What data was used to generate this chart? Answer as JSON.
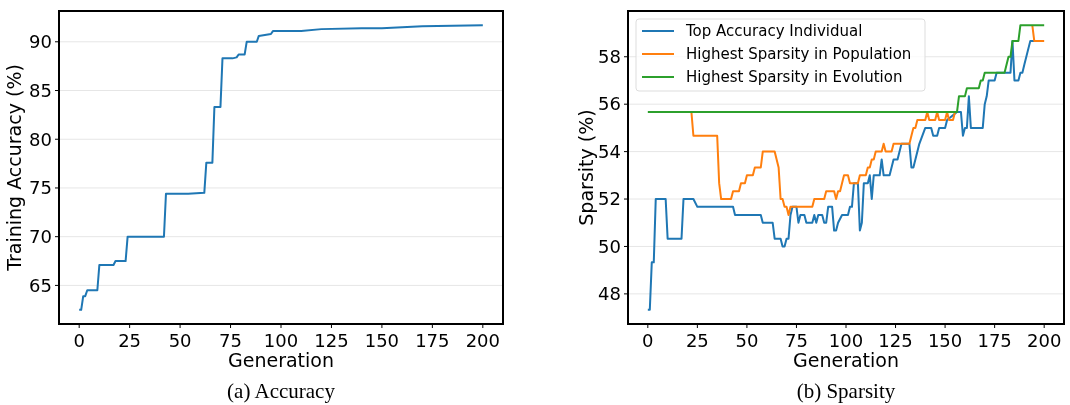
{
  "chart_data": [
    {
      "type": "line",
      "title": "(a) Accuracy",
      "xlabel": "Generation",
      "ylabel": "Training Accuracy (%)",
      "xlim": [
        -10,
        210
      ],
      "ylim": [
        61.04,
        93.16
      ],
      "xticks": [
        0,
        25,
        50,
        75,
        100,
        125,
        150,
        175,
        200
      ],
      "yticks": [
        65,
        70,
        75,
        80,
        85,
        90
      ],
      "grid": "y",
      "legend": false,
      "series": [
        {
          "color": "#1f77b4",
          "x": [
            0,
            1,
            2,
            3,
            4,
            9,
            10,
            17,
            18,
            23,
            24,
            42,
            43,
            54,
            62,
            63,
            66,
            67,
            70,
            71,
            76,
            78,
            79,
            82,
            83,
            88,
            89,
            92,
            95,
            96,
            110,
            120,
            140,
            150,
            160,
            170,
            200
          ],
          "values": [
            62.5,
            62.5,
            63.9,
            63.9,
            64.5,
            64.5,
            67.1,
            67.1,
            67.5,
            67.5,
            70,
            70,
            74.4,
            74.4,
            74.5,
            77.6,
            77.6,
            83.3,
            83.3,
            88.3,
            88.3,
            88.4,
            88.7,
            88.7,
            90,
            90,
            90.6,
            90.7,
            90.8,
            91.1,
            91.1,
            91.3,
            91.4,
            91.4,
            91.5,
            91.6,
            91.7
          ]
        }
      ]
    },
    {
      "type": "line",
      "title": "(b) Sparsity",
      "xlabel": "Generation",
      "ylabel": "Sparsity (%)",
      "xlim": [
        -10,
        210
      ],
      "ylim": [
        46.73,
        59.93
      ],
      "xticks": [
        0,
        25,
        50,
        75,
        100,
        125,
        150,
        175,
        200
      ],
      "yticks": [
        48,
        50,
        52,
        54,
        56,
        58
      ],
      "grid": "y",
      "legend": "top left",
      "series": [
        {
          "name": "Top Accuracy Individual",
          "color": "#1f77b4",
          "x": [
            0,
            1,
            2,
            3,
            4,
            9,
            10,
            17,
            18,
            23,
            25,
            43,
            44,
            57,
            58,
            63,
            64,
            67,
            68,
            69,
            70,
            71,
            72,
            73,
            75,
            76,
            77,
            79,
            80,
            83,
            84,
            85,
            86,
            88,
            89,
            90,
            91,
            93,
            94,
            95,
            96,
            98,
            101,
            102,
            103,
            104,
            106,
            107,
            108,
            109,
            111,
            112,
            113,
            114,
            117,
            118,
            119,
            122,
            124,
            126,
            128,
            132,
            133,
            134,
            137,
            140,
            143,
            144,
            146,
            147,
            150,
            151,
            156,
            158,
            159,
            160,
            161,
            162,
            163,
            169,
            170,
            171,
            172,
            175,
            176,
            183,
            184,
            185,
            187,
            188,
            189,
            190,
            193,
            195
          ],
          "values": [
            47.33,
            47.33,
            49.33,
            49.33,
            52,
            52,
            50.33,
            50.33,
            52,
            52,
            51.67,
            51.67,
            51.33,
            51.33,
            51,
            51,
            50.33,
            50.33,
            50,
            50,
            50.33,
            50.33,
            51.33,
            51.67,
            51.67,
            51,
            51.33,
            51.33,
            51,
            51,
            51.33,
            51,
            51.33,
            51.33,
            51,
            51,
            51.67,
            51.67,
            50.67,
            50.67,
            51,
            51.33,
            51.33,
            51.67,
            51.67,
            52.67,
            52.67,
            50.67,
            51,
            52.67,
            52.67,
            53,
            52,
            53,
            53,
            53.67,
            53,
            53,
            53.67,
            53.67,
            54.33,
            54.33,
            53.33,
            53.33,
            54.33,
            55,
            55,
            54.67,
            54.67,
            55,
            55,
            55.33,
            55.67,
            55.67,
            54.67,
            55,
            55,
            56.33,
            55,
            55,
            56,
            56.33,
            57,
            57,
            57.33,
            57.33,
            58.67,
            57,
            57,
            57.33,
            57.33,
            57.67,
            58.67,
            58.67
          ]
        },
        {
          "name": "Highest Sparsity in Population",
          "color": "#ff7f0e",
          "x": [
            22,
            23,
            35,
            36,
            37,
            42,
            43,
            46,
            47,
            49,
            50,
            53,
            54,
            57,
            58,
            64,
            66,
            67,
            68,
            69,
            70,
            71,
            72,
            83,
            84,
            89,
            90,
            94,
            95,
            96,
            97,
            98,
            99,
            101,
            102,
            106,
            107,
            110,
            111,
            112,
            113,
            114,
            115,
            118,
            119,
            120,
            123,
            124,
            132,
            133,
            134,
            135,
            136,
            140,
            141,
            142,
            145,
            146,
            147,
            150,
            151,
            152,
            154,
            155,
            175,
            194,
            195,
            200
          ],
          "values": [
            55.67,
            54.67,
            54.67,
            52.67,
            52,
            52,
            52.33,
            52.33,
            52.67,
            52.67,
            53,
            53,
            53.33,
            53.33,
            54,
            54,
            53.33,
            52,
            52,
            51.67,
            51.67,
            51.33,
            51.67,
            51.67,
            52,
            52,
            52.33,
            52.33,
            52,
            52.33,
            52.33,
            52.67,
            53,
            53,
            52.67,
            52.67,
            53,
            53,
            53.33,
            53.33,
            53.67,
            53.67,
            54,
            54,
            54.33,
            54,
            54,
            54.33,
            54.33,
            54.67,
            55,
            55,
            55.33,
            55.33,
            55.67,
            55.33,
            55.33,
            55.67,
            55.33,
            55.33,
            55.67,
            55.33,
            55.33,
            55.67,
            null,
            59.33,
            58.67,
            58.67
          ]
        },
        {
          "name": "Highest Sparsity in Evolution",
          "color": "#2ca02c",
          "x": [
            0,
            156,
            157,
            160,
            161,
            167,
            168,
            169,
            170,
            180,
            182,
            183,
            184,
            187,
            188,
            200
          ],
          "values": [
            55.67,
            55.67,
            56.33,
            56.33,
            56.67,
            56.67,
            57,
            57,
            57.33,
            57.33,
            58,
            58,
            58.67,
            58.67,
            59.33,
            59.33
          ]
        }
      ]
    }
  ]
}
